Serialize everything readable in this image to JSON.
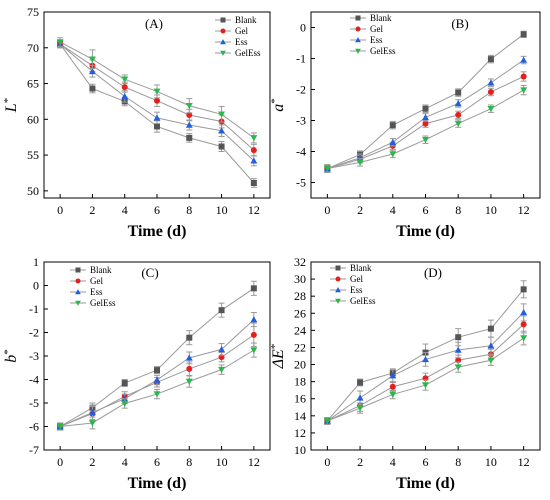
{
  "chart_data": [
    {
      "type": "line",
      "panel_label": "(A)",
      "xlabel": "Time (d)",
      "ylabel": "L*",
      "ylabel_main": "L",
      "ylabel_sup": "*",
      "x": [
        0,
        2,
        4,
        6,
        8,
        10,
        12
      ],
      "xlim": [
        -1,
        13
      ],
      "xticks": [
        0,
        2,
        4,
        6,
        8,
        10,
        12
      ],
      "xtick_labels": [
        "0",
        "2",
        "4",
        "6",
        "8",
        "10",
        "12"
      ],
      "ylim": [
        49,
        75
      ],
      "yticks": [
        50,
        55,
        60,
        65,
        70,
        75
      ],
      "ytick_labels": [
        "50",
        "55",
        "60",
        "65",
        "70",
        "75"
      ],
      "legend_position": "top-right",
      "series": [
        {
          "name": "Blank",
          "marker": "square",
          "color": "#555555",
          "values": [
            70.5,
            64.3,
            62.5,
            59.0,
            57.4,
            56.2,
            51.1
          ],
          "errors": [
            0.5,
            0.6,
            0.6,
            0.8,
            0.6,
            0.7,
            0.6
          ]
        },
        {
          "name": "Gel",
          "marker": "circle",
          "color": "#e3201b",
          "values": [
            70.5,
            67.5,
            64.5,
            62.6,
            60.6,
            59.7,
            55.7
          ],
          "errors": [
            0.5,
            0.8,
            0.7,
            0.8,
            0.8,
            0.9,
            0.8
          ]
        },
        {
          "name": "Ess",
          "marker": "triangle-up",
          "color": "#1f5fe0",
          "values": [
            70.5,
            66.7,
            63.2,
            60.2,
            59.2,
            58.4,
            54.2
          ],
          "errors": [
            0.5,
            0.8,
            0.8,
            0.8,
            0.7,
            0.8,
            0.7
          ]
        },
        {
          "name": "GelEss",
          "marker": "triangle-down",
          "color": "#2ab84a",
          "values": [
            70.8,
            68.4,
            65.6,
            63.9,
            61.9,
            60.7,
            57.4
          ],
          "errors": [
            0.6,
            1.3,
            0.6,
            0.9,
            1.0,
            1.1,
            0.7
          ]
        }
      ]
    },
    {
      "type": "line",
      "panel_label": "(B)",
      "xlabel": "Time (d)",
      "ylabel": "a*",
      "ylabel_main": "a",
      "ylabel_sup": "*",
      "x": [
        0,
        2,
        4,
        6,
        8,
        10,
        12
      ],
      "xlim": [
        -1,
        13
      ],
      "xticks": [
        0,
        2,
        4,
        6,
        8,
        10,
        12
      ],
      "xtick_labels": [
        "0",
        "2",
        "4",
        "6",
        "8",
        "10",
        "12"
      ],
      "ylim": [
        -5.5,
        0.5
      ],
      "yticks": [
        -5,
        -4,
        -3,
        -2,
        -1,
        0
      ],
      "ytick_labels": [
        "-5",
        "-4",
        "-3",
        "-2",
        "-1",
        "0"
      ],
      "legend_position": "top-center",
      "series": [
        {
          "name": "Blank",
          "marker": "square",
          "color": "#555555",
          "values": [
            -4.55,
            -4.1,
            -3.15,
            -2.62,
            -2.1,
            -1.02,
            -0.22
          ],
          "errors": [
            0.12,
            0.12,
            0.12,
            0.12,
            0.12,
            0.12,
            0.1
          ]
        },
        {
          "name": "Gel",
          "marker": "circle",
          "color": "#e3201b",
          "values": [
            -4.55,
            -4.25,
            -3.82,
            -3.1,
            -2.82,
            -2.08,
            -1.58
          ],
          "errors": [
            0.12,
            0.12,
            0.12,
            0.12,
            0.12,
            0.12,
            0.15
          ]
        },
        {
          "name": "Ess",
          "marker": "triangle-up",
          "color": "#1f5fe0",
          "values": [
            -4.55,
            -4.2,
            -3.7,
            -2.9,
            -2.45,
            -1.78,
            -1.05
          ],
          "errors": [
            0.12,
            0.12,
            0.12,
            0.12,
            0.12,
            0.12,
            0.12
          ]
        },
        {
          "name": "GelEss",
          "marker": "triangle-down",
          "color": "#2ab84a",
          "values": [
            -4.55,
            -4.35,
            -4.08,
            -3.62,
            -3.1,
            -2.62,
            -2.02
          ],
          "errors": [
            0.12,
            0.12,
            0.12,
            0.12,
            0.12,
            0.12,
            0.15
          ]
        }
      ]
    },
    {
      "type": "line",
      "panel_label": "(C)",
      "xlabel": "Time (d)",
      "ylabel": "b*",
      "ylabel_main": "b",
      "ylabel_sup": "*",
      "x": [
        0,
        2,
        4,
        6,
        8,
        10,
        12
      ],
      "xlim": [
        -1,
        13
      ],
      "xticks": [
        0,
        2,
        4,
        6,
        8,
        10,
        12
      ],
      "xtick_labels": [
        "0",
        "2",
        "4",
        "6",
        "8",
        "10",
        "12"
      ],
      "ylim": [
        -7,
        1
      ],
      "yticks": [
        -7,
        -6,
        -5,
        -4,
        -3,
        -2,
        -1,
        0,
        1
      ],
      "ytick_labels": [
        "-7",
        "-6",
        "-5",
        "-4",
        "-3",
        "-2",
        "-1",
        "0",
        "1"
      ],
      "legend_position": "top-center",
      "series": [
        {
          "name": "Blank",
          "marker": "square",
          "color": "#555555",
          "values": [
            -6.0,
            -5.2,
            -4.15,
            -3.6,
            -2.22,
            -1.05,
            -0.12
          ],
          "errors": [
            0.15,
            0.2,
            0.15,
            0.15,
            0.3,
            0.3,
            0.3
          ]
        },
        {
          "name": "Gel",
          "marker": "circle",
          "color": "#e3201b",
          "values": [
            -6.0,
            -5.45,
            -4.72,
            -4.12,
            -3.55,
            -3.05,
            -2.1
          ],
          "errors": [
            0.15,
            0.3,
            0.2,
            0.2,
            0.3,
            0.2,
            0.5
          ]
        },
        {
          "name": "Ess",
          "marker": "triangle-up",
          "color": "#1f5fe0",
          "values": [
            -6.0,
            -5.4,
            -4.82,
            -4.02,
            -3.08,
            -2.72,
            -1.45
          ],
          "errors": [
            0.15,
            0.3,
            0.2,
            0.2,
            0.25,
            0.25,
            0.3
          ]
        },
        {
          "name": "GelEss",
          "marker": "triangle-down",
          "color": "#2ab84a",
          "values": [
            -6.0,
            -5.85,
            -5.02,
            -4.62,
            -4.08,
            -3.58,
            -2.75
          ],
          "errors": [
            0.15,
            0.25,
            0.2,
            0.2,
            0.25,
            0.2,
            0.3
          ]
        }
      ]
    },
    {
      "type": "line",
      "panel_label": "(D)",
      "xlabel": "Time (d)",
      "ylabel": "ΔE*",
      "ylabel_main": "ΔE",
      "ylabel_sup": "*",
      "x": [
        0,
        2,
        4,
        6,
        8,
        10,
        12
      ],
      "xlim": [
        -1,
        13
      ],
      "xticks": [
        0,
        2,
        4,
        6,
        8,
        10,
        12
      ],
      "xtick_labels": [
        "0",
        "2",
        "4",
        "6",
        "8",
        "10",
        "12"
      ],
      "ylim": [
        10,
        32
      ],
      "yticks": [
        10,
        12,
        14,
        16,
        18,
        20,
        22,
        24,
        26,
        28,
        30,
        32
      ],
      "ytick_labels": [
        "10",
        "12",
        "14",
        "16",
        "18",
        "20",
        "22",
        "24",
        "26",
        "28",
        "30",
        "32"
      ],
      "legend_position": "top-left",
      "series": [
        {
          "name": "Blank",
          "marker": "square",
          "color": "#555555",
          "values": [
            13.4,
            17.9,
            19.0,
            21.4,
            23.2,
            24.2,
            28.8
          ],
          "errors": [
            0.4,
            0.4,
            0.5,
            1.0,
            1.0,
            1.0,
            1.0
          ]
        },
        {
          "name": "Gel",
          "marker": "circle",
          "color": "#e3201b",
          "values": [
            13.4,
            15.2,
            17.4,
            18.4,
            20.5,
            21.2,
            24.7
          ],
          "errors": [
            0.4,
            0.7,
            0.5,
            0.6,
            0.6,
            0.6,
            1.0
          ]
        },
        {
          "name": "Ess",
          "marker": "triangle-up",
          "color": "#1f5fe0",
          "values": [
            13.4,
            16.1,
            18.7,
            20.6,
            21.7,
            22.2,
            26.1
          ],
          "errors": [
            0.4,
            0.8,
            0.7,
            0.8,
            0.9,
            1.0,
            1.0
          ]
        },
        {
          "name": "GelEss",
          "marker": "triangle-down",
          "color": "#2ab84a",
          "values": [
            13.4,
            14.9,
            16.5,
            17.6,
            19.7,
            20.5,
            23.1
          ],
          "errors": [
            0.4,
            0.6,
            0.5,
            0.6,
            0.6,
            0.6,
            0.8
          ]
        }
      ]
    }
  ]
}
